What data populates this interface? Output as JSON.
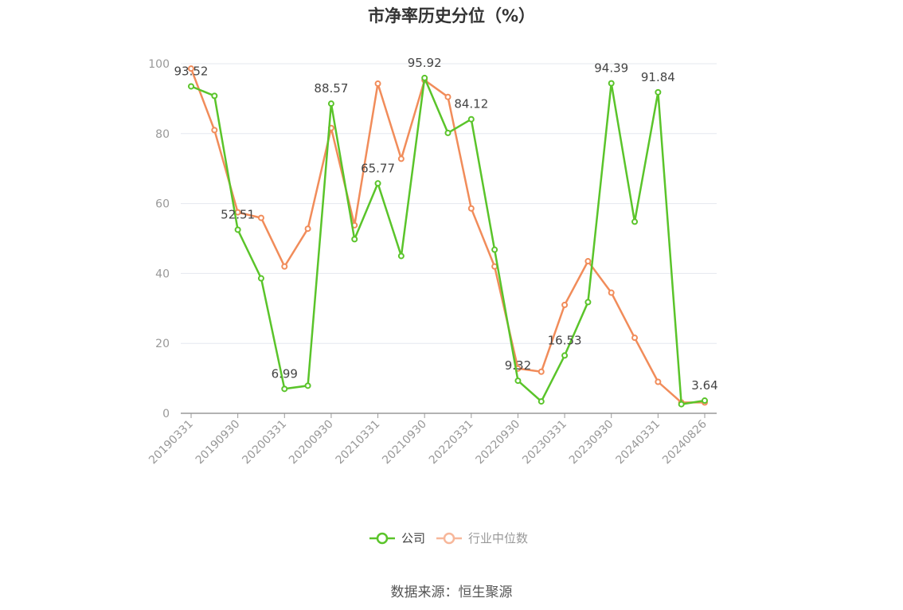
{
  "title": "市净率历史分位（%）",
  "source": "数据来源：恒生聚源",
  "colors": {
    "company": "#5ac42a",
    "industry": "#f18c5a",
    "industry_legend": "#f7b79a",
    "grid": "#e5e8ef",
    "axis": "#999999",
    "legend_text_company": "#444444",
    "legend_text_industry": "#999999"
  },
  "chart_data": {
    "type": "line",
    "title": "市净率历史分位（%）",
    "xlabel": "",
    "ylabel": "",
    "ylim": [
      0,
      100
    ],
    "yticks": [
      0,
      20,
      40,
      60,
      80,
      100
    ],
    "grid": true,
    "legend_position": "bottom",
    "x": [
      "20190331",
      "20190630",
      "20190930",
      "20191231",
      "20200331",
      "20200630",
      "20200930",
      "20201231",
      "20210331",
      "20210630",
      "20210930",
      "20211231",
      "20220331",
      "20220630",
      "20220930",
      "20221231",
      "20230331",
      "20230630",
      "20230930",
      "20231231",
      "20240331",
      "20240630",
      "20240826"
    ],
    "x_tick_labels": [
      "20190331",
      "20190930",
      "20200331",
      "20200930",
      "20210331",
      "20210930",
      "20220331",
      "20220930",
      "20230331",
      "20230930",
      "20240331",
      "20240826"
    ],
    "series": [
      {
        "name": "公司",
        "values": [
          93.52,
          90.8,
          52.51,
          38.6,
          6.99,
          7.9,
          88.57,
          49.8,
          65.77,
          45.0,
          95.92,
          80.2,
          84.12,
          46.8,
          9.32,
          3.4,
          16.53,
          31.8,
          94.39,
          54.8,
          91.84,
          2.6,
          3.64
        ]
      },
      {
        "name": "行业中位数",
        "values": [
          98.6,
          81.0,
          57.5,
          55.9,
          42.0,
          52.8,
          81.6,
          53.8,
          94.3,
          72.8,
          95.3,
          90.5,
          58.6,
          42.0,
          12.8,
          11.9,
          31.0,
          43.5,
          34.5,
          21.6,
          9.0,
          3.1,
          3.1
        ]
      }
    ],
    "data_labels": [
      {
        "series": 0,
        "index": 0,
        "text": "93.52"
      },
      {
        "series": 0,
        "index": 2,
        "text": "52.51"
      },
      {
        "series": 0,
        "index": 4,
        "text": "6.99"
      },
      {
        "series": 0,
        "index": 6,
        "text": "88.57"
      },
      {
        "series": 0,
        "index": 8,
        "text": "65.77"
      },
      {
        "series": 0,
        "index": 10,
        "text": "95.92"
      },
      {
        "series": 0,
        "index": 12,
        "text": "84.12"
      },
      {
        "series": 0,
        "index": 14,
        "text": "9.32"
      },
      {
        "series": 0,
        "index": 16,
        "text": "16.53"
      },
      {
        "series": 0,
        "index": 18,
        "text": "94.39"
      },
      {
        "series": 0,
        "index": 20,
        "text": "91.84"
      },
      {
        "series": 0,
        "index": 22,
        "text": "3.64"
      }
    ]
  }
}
